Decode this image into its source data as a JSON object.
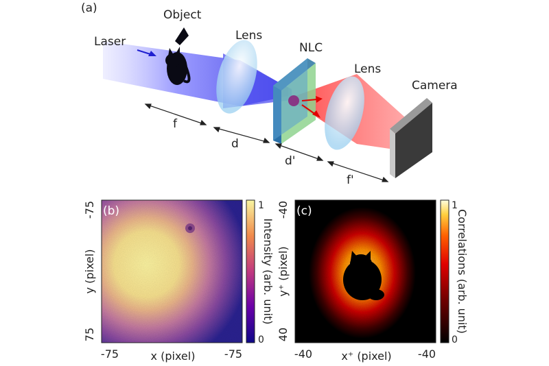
{
  "setup": {
    "panel_label": "(a)",
    "object_label": "Object",
    "laser_label": "Laser",
    "lens1_label": "Lens",
    "nlc_label": "NLC",
    "lens2_label": "Lens",
    "camera_label": "Camera",
    "distances": [
      "f",
      "d",
      "d'",
      "f'"
    ]
  },
  "panel_b": {
    "label": "(b)",
    "y_top": "-75",
    "y_bottom": "75",
    "x_left": "-75",
    "x_right": "-75",
    "xlabel": "x (pixel)",
    "ylabel": "y (pixel)",
    "cbar_label": "Intensity (arb. unit)",
    "cbar_max": "1",
    "cbar_min": "0",
    "colormap": [
      "#0d0887",
      "#6a00a8",
      "#b12a90",
      "#e16462",
      "#fca636",
      "#f0f921"
    ]
  },
  "panel_c": {
    "label": "(c)",
    "y_top": "-40",
    "y_bottom": "40",
    "x_left": "-40",
    "x_right": "-40",
    "xlabel": "x⁺ (pixel)",
    "ylabel": "y⁺ (pixel)",
    "cbar_label": "Correlations (arb. unit)",
    "cbar_max": "1",
    "cbar_min": "0",
    "colormap": [
      "#000000",
      "#5a0000",
      "#c00000",
      "#ff4000",
      "#ffb000",
      "#ffffc0"
    ]
  }
}
